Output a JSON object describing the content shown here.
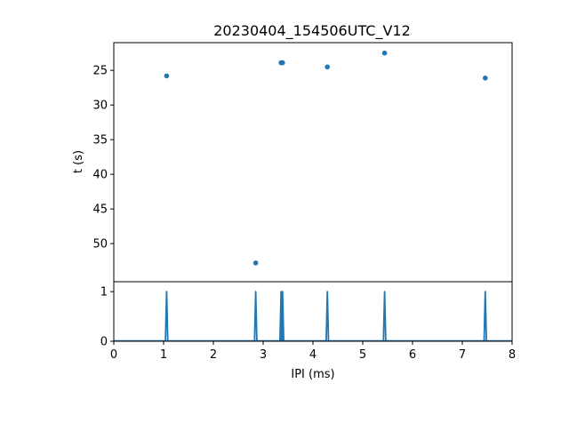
{
  "chart_data": [
    {
      "type": "scatter",
      "title": "20230404_154506UTC_V12",
      "xlabel": "",
      "ylabel": "t (s)",
      "xlim": [
        0,
        8
      ],
      "ylim": [
        55.5,
        21.0
      ],
      "y_inverted": true,
      "yticks": [
        25,
        30,
        35,
        40,
        45,
        50
      ],
      "grid": false,
      "color": "#1f77b4",
      "points": [
        {
          "x": 1.06,
          "y": 25.8
        },
        {
          "x": 2.85,
          "y": 52.8
        },
        {
          "x": 3.36,
          "y": 23.9
        },
        {
          "x": 3.39,
          "y": 23.9
        },
        {
          "x": 4.29,
          "y": 24.5
        },
        {
          "x": 5.44,
          "y": 22.5
        },
        {
          "x": 7.46,
          "y": 26.1
        }
      ]
    },
    {
      "type": "line",
      "xlabel": "IPI (ms)",
      "ylabel": "",
      "xlim": [
        0,
        8
      ],
      "ylim": [
        0,
        1.2
      ],
      "xticks": [
        0,
        1,
        2,
        3,
        4,
        5,
        6,
        7,
        8
      ],
      "yticks": [
        0,
        1
      ],
      "grid": false,
      "color": "#1f77b4",
      "spikes": [
        1.06,
        2.85,
        3.36,
        3.39,
        4.29,
        5.44,
        7.46
      ],
      "spike_height": 1
    }
  ]
}
